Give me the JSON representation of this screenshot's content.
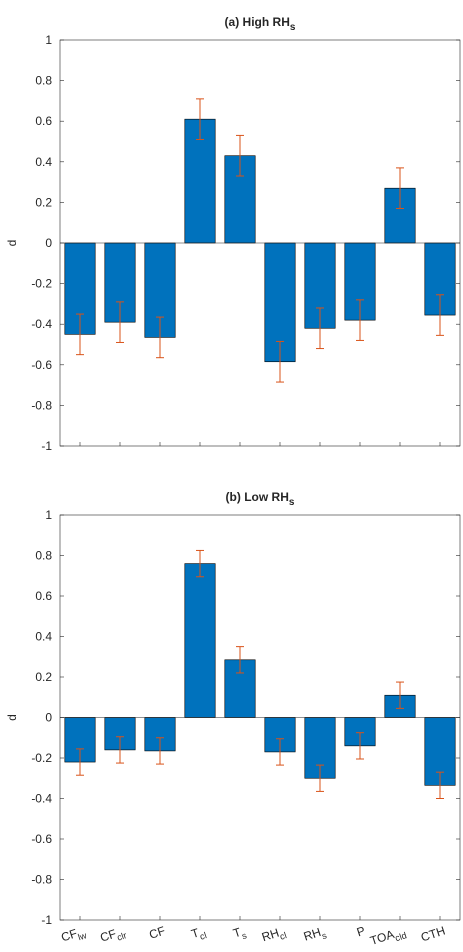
{
  "chart_data": [
    {
      "type": "bar",
      "title": {
        "text": "(a) High RH",
        "sub": "s"
      },
      "ylabel": "d",
      "values": [
        -0.45,
        -0.39,
        -0.465,
        0.61,
        0.43,
        -0.585,
        -0.42,
        -0.38,
        0.27,
        -0.355
      ],
      "errors": [
        0.1,
        0.1,
        0.1,
        0.1,
        0.1,
        0.1,
        0.1,
        0.1,
        0.1,
        0.1
      ],
      "color": "#0072bd",
      "error_color": "#d95319",
      "ylim": [
        -1,
        1
      ],
      "yticks": [
        -1,
        -0.8,
        -0.6,
        -0.4,
        -0.2,
        0,
        0.2,
        0.4,
        0.6,
        0.8,
        1
      ]
    },
    {
      "type": "bar",
      "title": {
        "text": "(b) Low RH",
        "sub": "s"
      },
      "ylabel": "d",
      "categories": [
        {
          "text": "CF",
          "sub": "lw"
        },
        {
          "text": "CF",
          "sub": "clr"
        },
        {
          "text": "CF"
        },
        {
          "text": "T",
          "sub": "cl"
        },
        {
          "text": "T",
          "sub": "s"
        },
        {
          "text": "RH",
          "sub": "cl"
        },
        {
          "text": "RH",
          "sub": "s"
        },
        {
          "text": "P"
        },
        {
          "text": "TOA",
          "sub": "cld"
        },
        {
          "text": "CTH"
        }
      ],
      "values": [
        -0.22,
        -0.16,
        -0.165,
        0.76,
        0.285,
        -0.17,
        -0.3,
        -0.14,
        0.11,
        -0.335
      ],
      "errors": [
        0.065,
        0.065,
        0.065,
        0.065,
        0.065,
        0.065,
        0.065,
        0.065,
        0.065,
        0.065
      ],
      "color": "#0072bd",
      "error_color": "#d95319",
      "ylim": [
        -1,
        1
      ],
      "yticks": [
        -1,
        -0.8,
        -0.6,
        -0.4,
        -0.2,
        0,
        0.2,
        0.4,
        0.6,
        0.8,
        1
      ]
    }
  ]
}
